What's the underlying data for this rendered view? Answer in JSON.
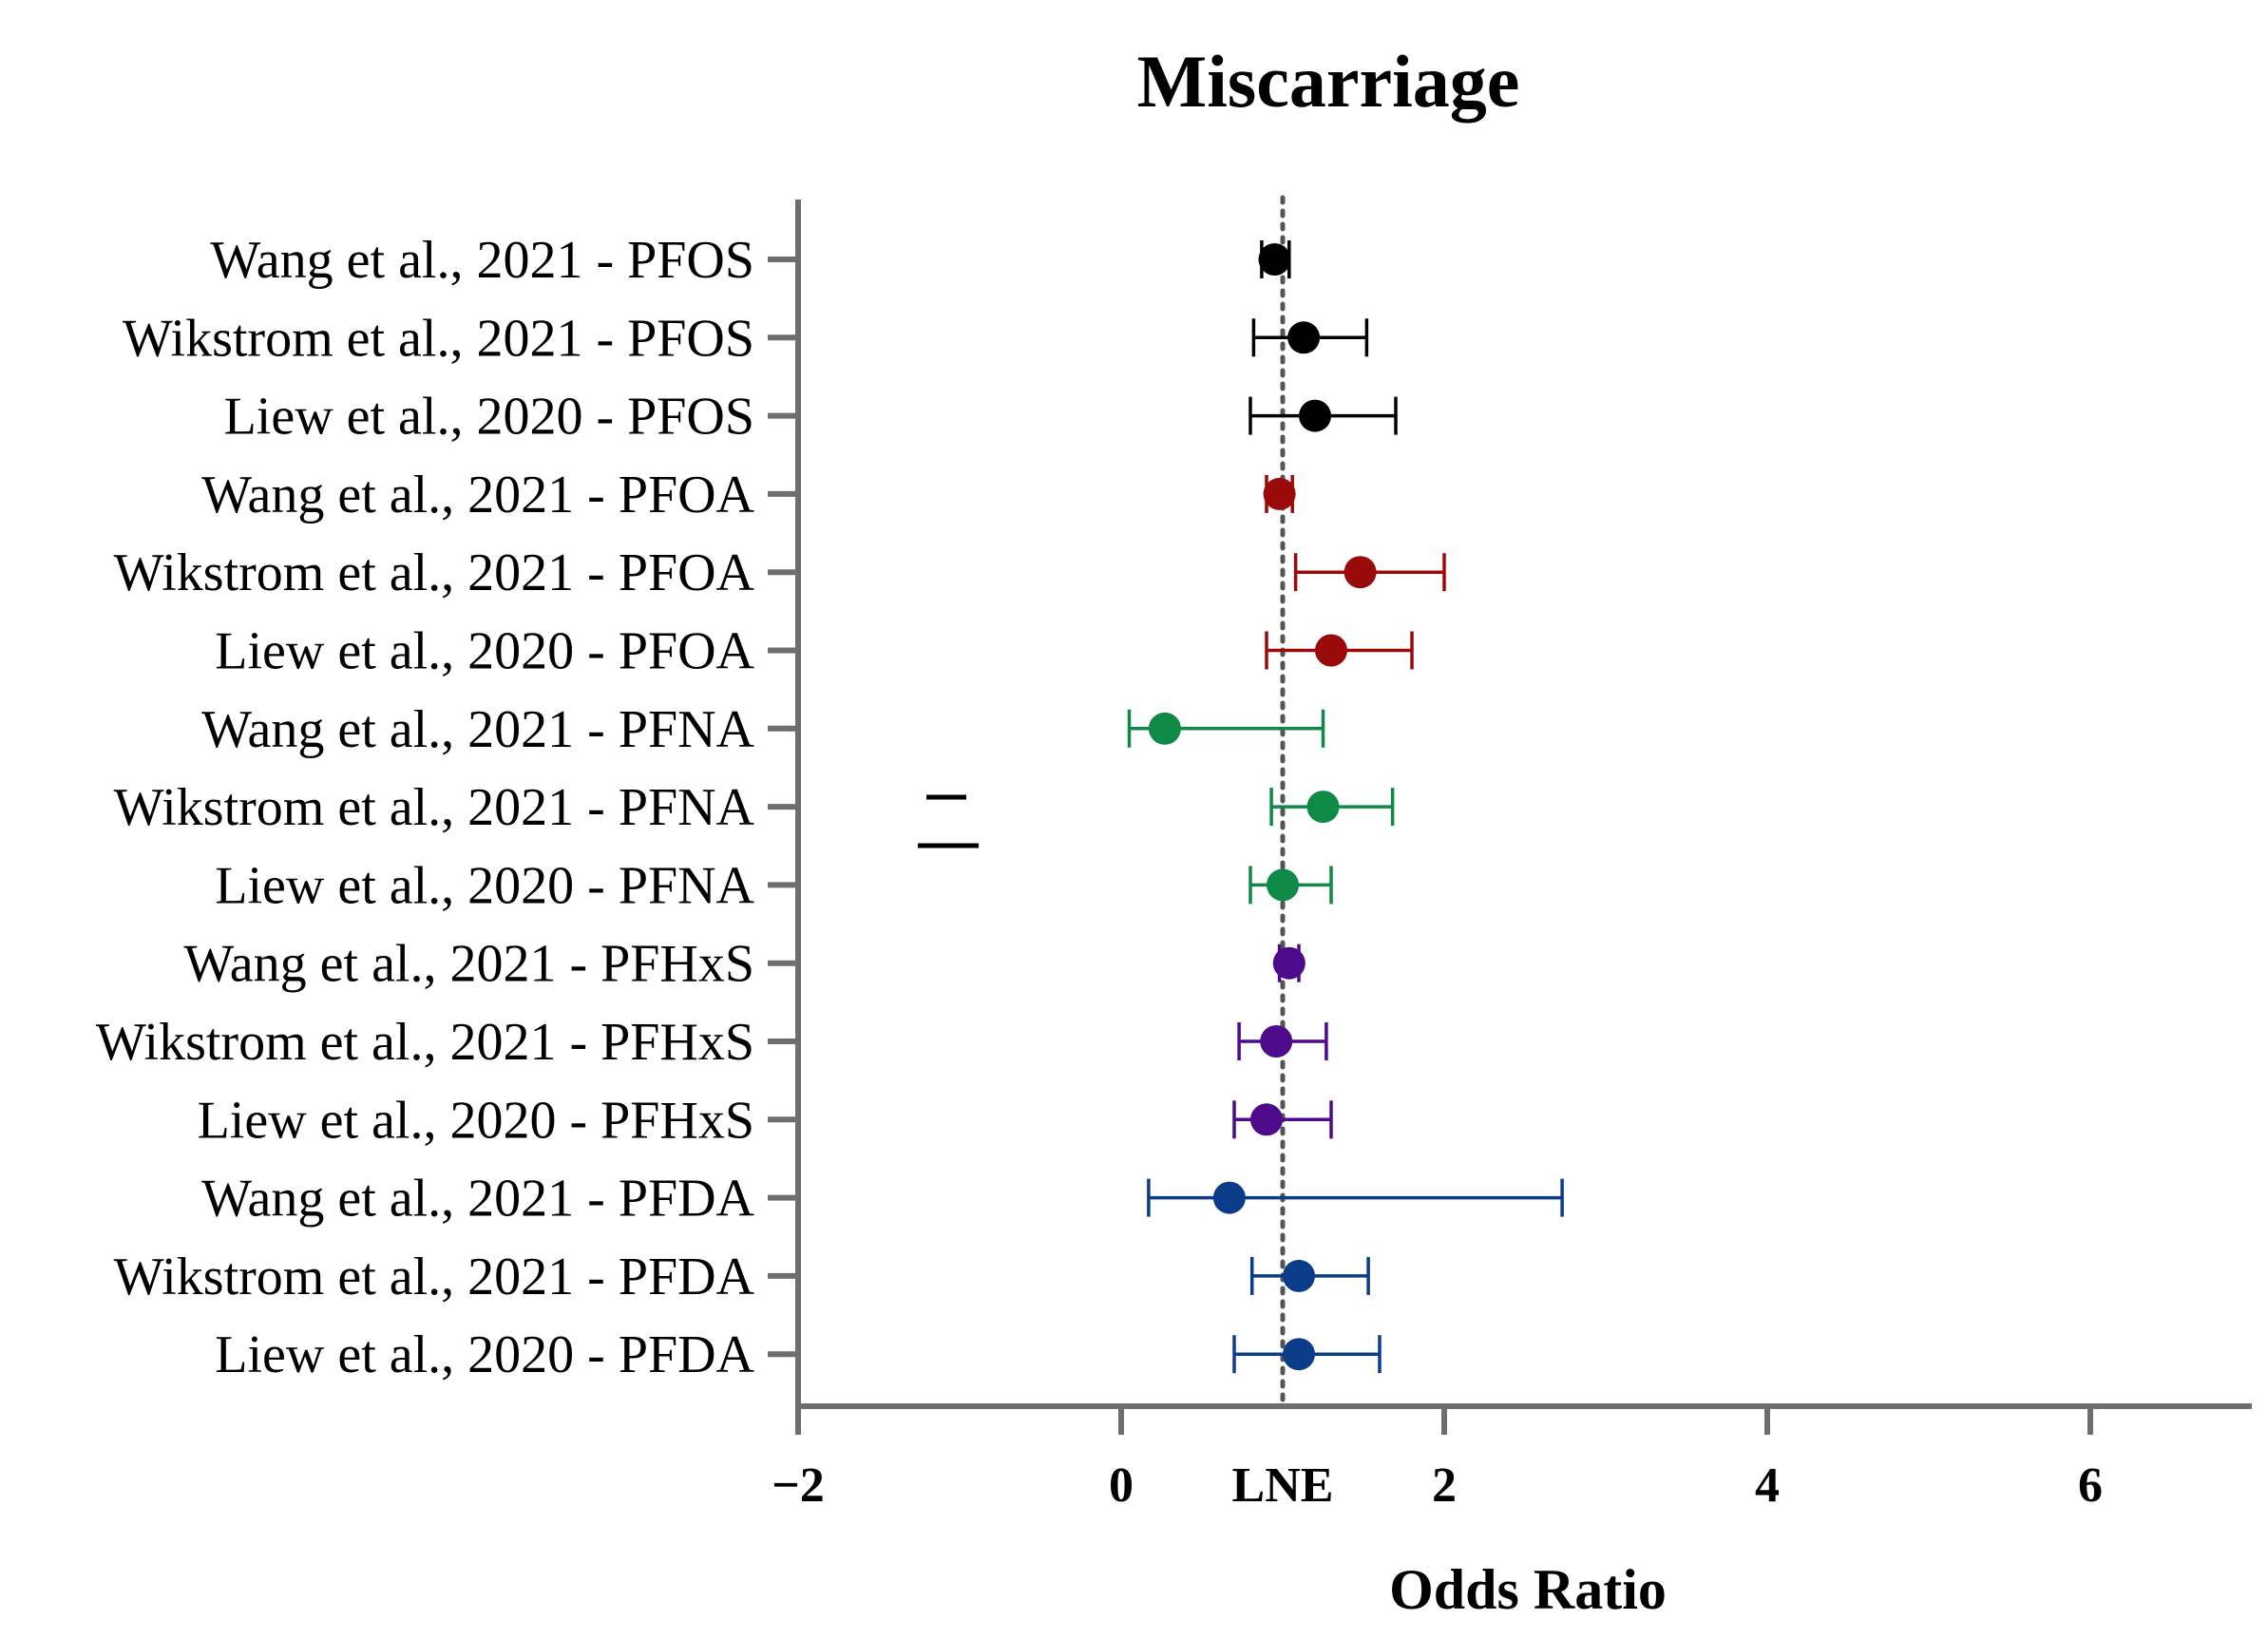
{
  "chart_data": {
    "type": "forest",
    "title": "Miscarriage",
    "xlabel": "Odds Ratio",
    "xlim": [
      -2,
      7
    ],
    "x_ticks": [
      {
        "value": -2,
        "label": "−2"
      },
      {
        "value": 0,
        "label": "0"
      },
      {
        "value": 1,
        "label": "LNE"
      },
      {
        "value": 2,
        "label": "2"
      },
      {
        "value": 4,
        "label": "4"
      },
      {
        "value": 6,
        "label": "6"
      }
    ],
    "reference_line": {
      "value": 1.0,
      "style": "dotted"
    },
    "legend_marks": "two short horizontal dashes (unlabeled)",
    "rows": [
      {
        "label": "Wang et al., 2021 - PFOS",
        "or": 0.95,
        "lo": 0.87,
        "hi": 1.04,
        "color": "#000000"
      },
      {
        "label": "Wikstrom et al., 2021 - PFOS",
        "or": 1.13,
        "lo": 0.82,
        "hi": 1.52,
        "color": "#000000"
      },
      {
        "label": "Liew et al., 2020 - PFOS",
        "or": 1.2,
        "lo": 0.8,
        "hi": 1.7,
        "color": "#000000"
      },
      {
        "label": "Wang et al., 2021 - PFOA",
        "or": 0.98,
        "lo": 0.9,
        "hi": 1.06,
        "color": "#9b0a0a"
      },
      {
        "label": "Wikstrom et al., 2021 - PFOA",
        "or": 1.48,
        "lo": 1.08,
        "hi": 2.0,
        "color": "#9b0a0a"
      },
      {
        "label": "Liew et al., 2020 - PFOA",
        "or": 1.3,
        "lo": 0.9,
        "hi": 1.8,
        "color": "#9b0a0a"
      },
      {
        "label": "Wang et al., 2021 - PFNA",
        "or": 0.27,
        "lo": 0.05,
        "hi": 1.25,
        "color": "#0f8a46"
      },
      {
        "label": "Wikstrom et al., 2021 - PFNA",
        "or": 1.25,
        "lo": 0.93,
        "hi": 1.68,
        "color": "#0f8a46"
      },
      {
        "label": "Liew et al., 2020 - PFNA",
        "or": 1.0,
        "lo": 0.8,
        "hi": 1.3,
        "color": "#0f8a46"
      },
      {
        "label": "Wang et al., 2021 -  PFHxS",
        "or": 1.04,
        "lo": 0.98,
        "hi": 1.1,
        "color": "#4d0a8a"
      },
      {
        "label": "Wikstrom et al., 2021 - PFHxS",
        "or": 0.96,
        "lo": 0.73,
        "hi": 1.27,
        "color": "#4d0a8a"
      },
      {
        "label": "Liew et al., 2020 - PFHxS",
        "or": 0.9,
        "lo": 0.7,
        "hi": 1.3,
        "color": "#4d0a8a"
      },
      {
        "label": "Wang et al., 2021 - PFDA",
        "or": 0.67,
        "lo": 0.17,
        "hi": 2.73,
        "color": "#0a3c8a"
      },
      {
        "label": "Wikstrom et al., 2021 - PFDA",
        "or": 1.1,
        "lo": 0.81,
        "hi": 1.53,
        "color": "#0a3c8a"
      },
      {
        "label": "Liew et al., 2020 - PFDA",
        "or": 1.1,
        "lo": 0.7,
        "hi": 1.6,
        "color": "#0a3c8a"
      }
    ]
  }
}
